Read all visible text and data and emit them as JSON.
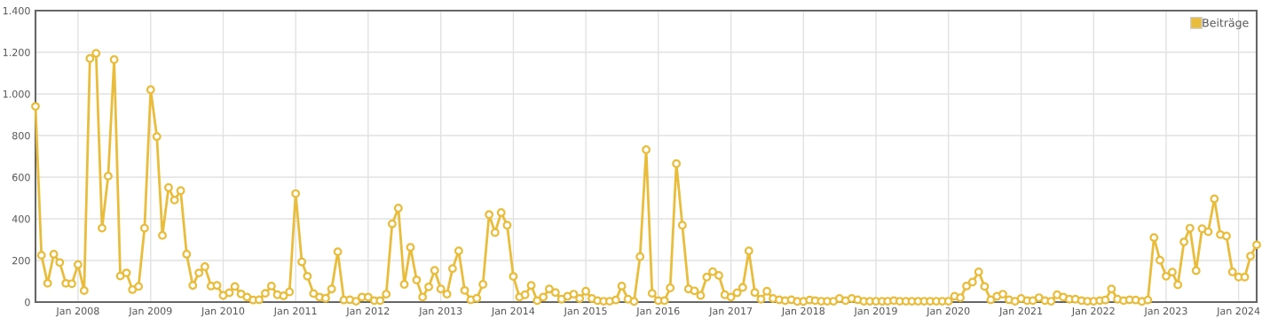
{
  "chart_data": {
    "type": "line",
    "x": [
      "2007-06",
      "2007-07",
      "2007-08",
      "2007-09",
      "2007-10",
      "2007-11",
      "2007-12",
      "2008-01",
      "2008-02",
      "2008-03",
      "2008-04",
      "2008-05",
      "2008-06",
      "2008-07",
      "2008-08",
      "2008-09",
      "2008-10",
      "2008-11",
      "2008-12",
      "2009-01",
      "2009-02",
      "2009-03",
      "2009-04",
      "2009-05",
      "2009-06",
      "2009-07",
      "2009-08",
      "2009-09",
      "2009-10",
      "2009-11",
      "2009-12",
      "2010-01",
      "2010-02",
      "2010-03",
      "2010-04",
      "2010-05",
      "2010-06",
      "2010-07",
      "2010-08",
      "2010-09",
      "2010-10",
      "2010-11",
      "2010-12",
      "2011-01",
      "2011-02",
      "2011-03",
      "2011-04",
      "2011-05",
      "2011-06",
      "2011-07",
      "2011-08",
      "2011-09",
      "2011-10",
      "2011-11",
      "2011-12",
      "2012-01",
      "2012-02",
      "2012-03",
      "2012-04",
      "2012-05",
      "2012-06",
      "2012-07",
      "2012-08",
      "2012-09",
      "2012-10",
      "2012-11",
      "2012-12",
      "2013-01",
      "2013-02",
      "2013-03",
      "2013-04",
      "2013-05",
      "2013-06",
      "2013-07",
      "2013-08",
      "2013-09",
      "2013-10",
      "2013-11",
      "2013-12",
      "2014-01",
      "2014-02",
      "2014-03",
      "2014-04",
      "2014-05",
      "2014-06",
      "2014-07",
      "2014-08",
      "2014-09",
      "2014-10",
      "2014-11",
      "2014-12",
      "2015-01",
      "2015-02",
      "2015-03",
      "2015-04",
      "2015-05",
      "2015-06",
      "2015-07",
      "2015-08",
      "2015-09",
      "2015-10",
      "2015-11",
      "2015-12",
      "2016-01",
      "2016-02",
      "2016-03",
      "2016-04",
      "2016-05",
      "2016-06",
      "2016-07",
      "2016-08",
      "2016-09",
      "2016-10",
      "2016-11",
      "2016-12",
      "2017-01",
      "2017-02",
      "2017-03",
      "2017-04",
      "2017-05",
      "2017-06",
      "2017-07",
      "2017-08",
      "2017-09",
      "2017-10",
      "2017-11",
      "2017-12",
      "2018-01",
      "2018-02",
      "2018-03",
      "2018-04",
      "2018-05",
      "2018-06",
      "2018-07",
      "2018-08",
      "2018-09",
      "2018-10",
      "2018-11",
      "2018-12",
      "2019-01",
      "2019-02",
      "2019-03",
      "2019-04",
      "2019-05",
      "2019-06",
      "2019-07",
      "2019-08",
      "2019-09",
      "2019-10",
      "2019-11",
      "2019-12",
      "2020-01",
      "2020-02",
      "2020-03",
      "2020-04",
      "2020-05",
      "2020-06",
      "2020-07",
      "2020-08",
      "2020-09",
      "2020-10",
      "2020-11",
      "2020-12",
      "2021-01",
      "2021-02",
      "2021-03",
      "2021-04",
      "2021-05",
      "2021-06",
      "2021-07",
      "2021-08",
      "2021-09",
      "2021-10",
      "2021-11",
      "2021-12",
      "2022-01",
      "2022-02",
      "2022-03",
      "2022-04",
      "2022-05",
      "2022-06",
      "2022-07",
      "2022-08",
      "2022-09",
      "2022-10",
      "2022-11",
      "2022-12",
      "2023-01",
      "2023-02",
      "2023-03",
      "2023-04",
      "2023-05",
      "2023-06",
      "2023-07",
      "2023-08",
      "2023-09",
      "2023-10",
      "2023-11",
      "2023-12",
      "2024-01",
      "2024-02",
      "2024-03",
      "2024-04"
    ],
    "series": [
      {
        "name": "Beiträge",
        "color": "#e9bd3b",
        "values": [
          940,
          225,
          90,
          230,
          190,
          90,
          88,
          180,
          55,
          1170,
          1195,
          355,
          605,
          1165,
          125,
          140,
          60,
          75,
          355,
          1020,
          795,
          320,
          550,
          490,
          535,
          230,
          80,
          140,
          170,
          77,
          80,
          32,
          45,
          75,
          39,
          24,
          10,
          11,
          42,
          77,
          35,
          30,
          49,
          521,
          193,
          124,
          41,
          24,
          18,
          63,
          242,
          10,
          11,
          4,
          24,
          24,
          7,
          7,
          38,
          376,
          451,
          85,
          263,
          106,
          24,
          73,
          152,
          63,
          38,
          161,
          246,
          56,
          11,
          18,
          85,
          420,
          334,
          430,
          369,
          123,
          24,
          35,
          80,
          7,
          24,
          63,
          46,
          14,
          28,
          38,
          17,
          52,
          17,
          7,
          4,
          4,
          10,
          77,
          14,
          3,
          218,
          732,
          42,
          7,
          7,
          68,
          665,
          369,
          63,
          54,
          32,
          120,
          146,
          128,
          35,
          24,
          45,
          70,
          246,
          46,
          14,
          52,
          17,
          11,
          7,
          11,
          3,
          3,
          10,
          7,
          4,
          4,
          4,
          17,
          7,
          17,
          11,
          4,
          4,
          4,
          4,
          4,
          7,
          4,
          4,
          4,
          4,
          4,
          4,
          4,
          4,
          4,
          28,
          21,
          77,
          96,
          145,
          75,
          11,
          28,
          38,
          11,
          4,
          17,
          7,
          7,
          21,
          7,
          4,
          35,
          24,
          14,
          14,
          7,
          4,
          4,
          7,
          10,
          63,
          14,
          7,
          11,
          10,
          3,
          10,
          310,
          201,
          124,
          144,
          83,
          289,
          355,
          151,
          352,
          338,
          496,
          324,
          317,
          145,
          120,
          120,
          221,
          275
        ]
      }
    ],
    "xlim": [
      "2007-06",
      "2024-04"
    ],
    "xticks": [
      {
        "value": "2008-01",
        "label": "Jan 2008"
      },
      {
        "value": "2009-01",
        "label": "Jan 2009"
      },
      {
        "value": "2010-01",
        "label": "Jan 2010"
      },
      {
        "value": "2011-01",
        "label": "Jan 2011"
      },
      {
        "value": "2012-01",
        "label": "Jan 2012"
      },
      {
        "value": "2013-01",
        "label": "Jan 2013"
      },
      {
        "value": "2014-01",
        "label": "Jan 2014"
      },
      {
        "value": "2015-01",
        "label": "Jan 2015"
      },
      {
        "value": "2016-01",
        "label": "Jan 2016"
      },
      {
        "value": "2017-01",
        "label": "Jan 2017"
      },
      {
        "value": "2018-01",
        "label": "Jan 2018"
      },
      {
        "value": "2019-01",
        "label": "Jan 2019"
      },
      {
        "value": "2020-01",
        "label": "Jan 2020"
      },
      {
        "value": "2021-01",
        "label": "Jan 2021"
      },
      {
        "value": "2022-01",
        "label": "Jan 2022"
      },
      {
        "value": "2023-01",
        "label": "Jan 2023"
      },
      {
        "value": "2024-01",
        "label": "Jan 2024"
      }
    ],
    "ylim": [
      0,
      1400
    ],
    "yticks": [
      0,
      200,
      400,
      600,
      800,
      {
        "value": 1000,
        "label": "1.000"
      },
      {
        "value": 1200,
        "label": "1.200"
      },
      {
        "value": 1400,
        "label": "1.400"
      }
    ],
    "grid": true,
    "legend": "top right",
    "marker": "circle",
    "line_style": "solid"
  }
}
